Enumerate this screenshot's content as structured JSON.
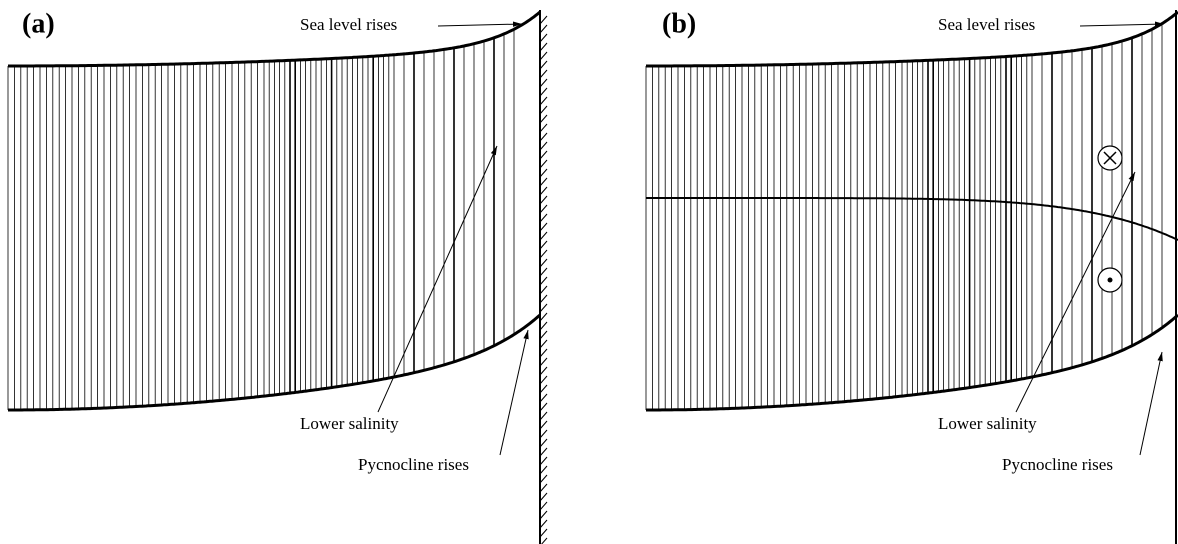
{
  "panels": [
    {
      "label": "(a)",
      "annotations": {
        "sea_level": "Sea level rises",
        "salinity": "Lower salinity",
        "pycnocline": "Pycnocline rises"
      }
    },
    {
      "label": "(b)",
      "annotations": {
        "sea_level": "Sea level rises",
        "salinity": "Lower salinity",
        "pycnocline": "Pycnocline rises"
      }
    }
  ]
}
